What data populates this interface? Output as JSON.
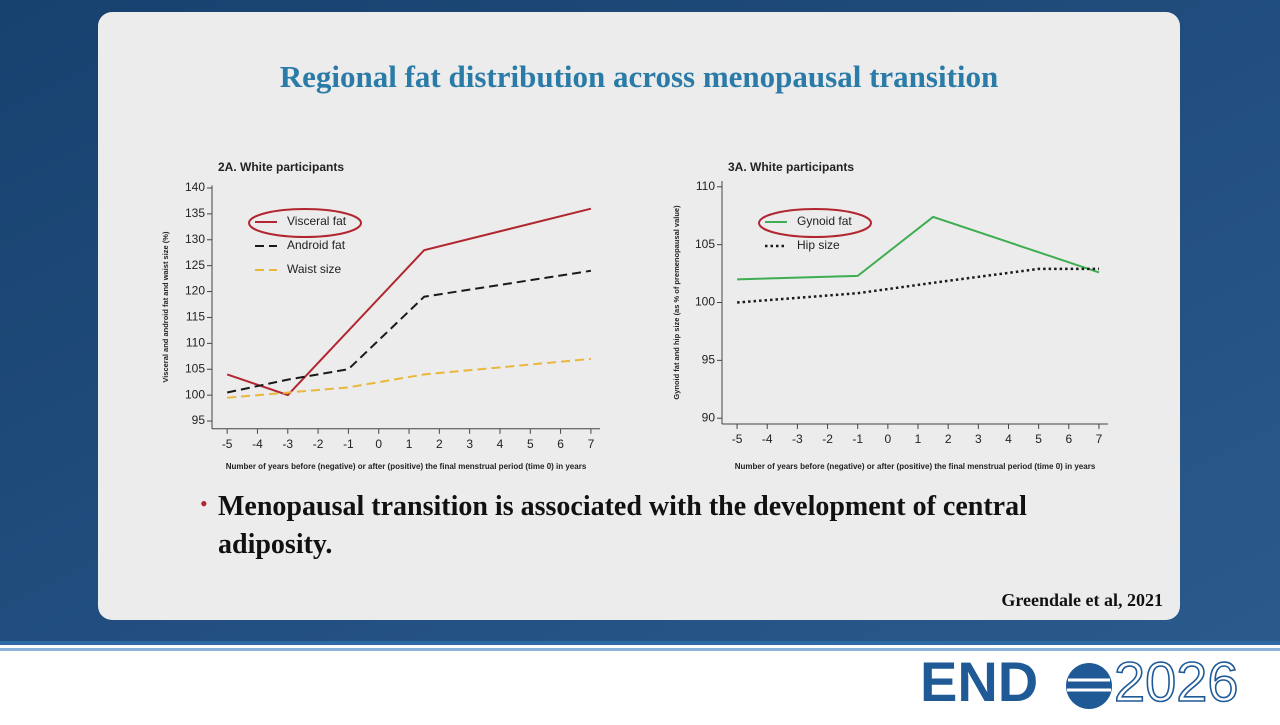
{
  "slide_title": "Regional fat distribution across menopausal transition",
  "bullet": "Menopausal transition is associated with the development of central adiposity.",
  "citation": "Greendale et al, 2021",
  "logo": {
    "left": "END",
    "right": "2026"
  },
  "chart_data": [
    {
      "type": "line",
      "title": "2A. White participants",
      "x_label": "Number of years before (negative) or after (positive) the final menstrual period (time 0) in years",
      "y_label": "Visceral and android fat and waist size (%)",
      "xlim": [
        -5.5,
        7.3
      ],
      "xticks": [
        -5,
        -4,
        -3,
        -2,
        -1,
        0,
        1,
        2,
        3,
        4,
        5,
        6,
        7
      ],
      "ylim": [
        93.5,
        140.5
      ],
      "yticks": [
        95,
        100,
        105,
        110,
        115,
        120,
        125,
        130,
        135,
        140
      ],
      "series": [
        {
          "name": "Visceral fat",
          "color": "#b1262f",
          "style": "solid",
          "x": [
            -5,
            -3,
            1.5,
            7
          ],
          "values": [
            104,
            100,
            128,
            136
          ]
        },
        {
          "name": "Android fat",
          "color": "#1a1a1a",
          "style": "dashed",
          "x": [
            -5,
            -3,
            -1,
            1.5,
            7
          ],
          "values": [
            100.5,
            103,
            105,
            119,
            124
          ]
        },
        {
          "name": "Waist size",
          "color": "#e9b73a",
          "style": "dashed",
          "x": [
            -5,
            -1,
            1.5,
            7
          ],
          "values": [
            99.5,
            101.5,
            104,
            107
          ]
        }
      ]
    },
    {
      "type": "line",
      "title": "3A. White participants",
      "x_label": "Number of years before (negative) or after (positive) the final menstrual period (time 0) in years",
      "y_label": "Gynoid fat and hip size (as % of premenopausal value)",
      "xlim": [
        -5.5,
        7.3
      ],
      "xticks": [
        -5,
        -4,
        -3,
        -2,
        -1,
        0,
        1,
        2,
        3,
        4,
        5,
        6,
        7
      ],
      "ylim": [
        89.5,
        110.5
      ],
      "yticks": [
        90,
        95,
        100,
        105,
        110
      ],
      "series": [
        {
          "name": "Gynoid fat",
          "color": "#3fae52",
          "style": "solid",
          "x": [
            -5,
            -1,
            1.5,
            7
          ],
          "values": [
            102,
            102.3,
            107.4,
            102.6
          ]
        },
        {
          "name": "Hip size",
          "color": "#1a1a1a",
          "style": "dotted",
          "x": [
            -5,
            -1,
            1.5,
            5,
            7
          ],
          "values": [
            100,
            100.8,
            101.7,
            102.9,
            102.9
          ]
        }
      ]
    }
  ]
}
